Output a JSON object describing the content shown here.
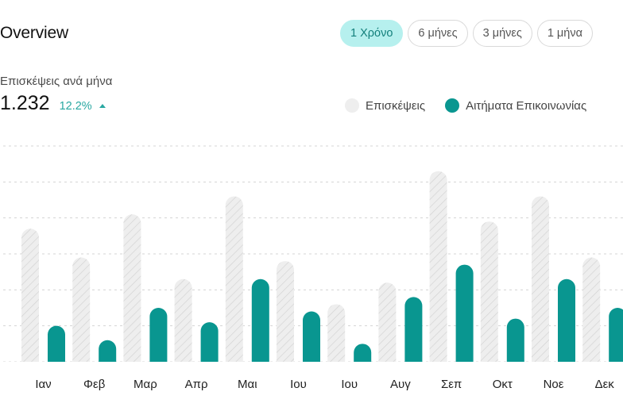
{
  "header": {
    "title": "Overview"
  },
  "range_tabs": [
    {
      "label": "1 Χρόνο",
      "active": true
    },
    {
      "label": "6 μήνες",
      "active": false
    },
    {
      "label": "3 μήνες",
      "active": false
    },
    {
      "label": "1 μήνα",
      "active": false
    }
  ],
  "metric": {
    "label": "Επισκέψεις ανά μήνα",
    "value": "1.232",
    "change": "12.2%",
    "trend_icon": "triangle-up-icon"
  },
  "legend": {
    "visits": "Επισκέψεις",
    "contacts": "Αιτήματα Επικοινωνίας"
  },
  "colors": {
    "visits": "#eeeeee",
    "visits_hatch": "#d2d2d2",
    "contacts": "#099690",
    "accent": "#29a8a2",
    "active_tab_bg": "#b6f0ee"
  },
  "chart_data": {
    "type": "bar",
    "categories": [
      "Ιαν",
      "Φεβ",
      "Μαρ",
      "Απρ",
      "Μαι",
      "Ιου",
      "Ιου",
      "Αυγ",
      "Σεπ",
      "Οκτ",
      "Νοε",
      "Δεκ"
    ],
    "series": [
      {
        "name": "Επισκέψεις",
        "values": [
          37,
          29,
          41,
          23,
          46,
          28,
          16,
          22,
          53,
          39,
          46,
          29
        ]
      },
      {
        "name": "Αιτήματα Επικοινωνίας",
        "values": [
          10,
          6,
          15,
          11,
          23,
          14,
          5,
          18,
          27,
          12,
          23,
          15
        ]
      }
    ],
    "ylim": [
      0,
      60
    ],
    "grid": true,
    "legend": "top-right"
  }
}
